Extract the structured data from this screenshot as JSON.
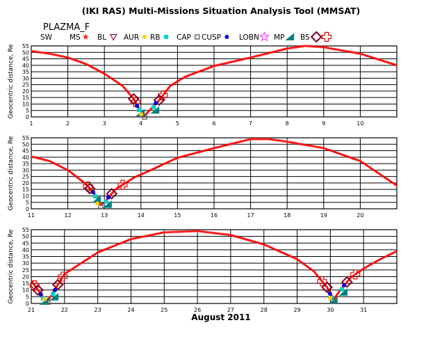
{
  "chart_data": {
    "type": "line",
    "title": "(IKI RAS) Multi-Missions Situation Analysis Tool (MMSAT)",
    "satellite": "PLAZMA_F",
    "xlabel": "August 2011",
    "ylabel": "Geocentric distance, Re",
    "ylim": [
      0,
      55
    ],
    "yticks": [
      "0",
      "5",
      "10",
      "15",
      "20",
      "25",
      "30",
      "35",
      "40",
      "45",
      "50",
      "55"
    ],
    "grid": true,
    "legend_position": "top",
    "legend": [
      {
        "label": "SW",
        "symbol": "none",
        "color": "#ff0000"
      },
      {
        "label": "MS",
        "symbol": "star",
        "color": "#ff2020"
      },
      {
        "label": "BL",
        "symbol": "triangle-down-open",
        "color": "#a01030"
      },
      {
        "label": "AUR",
        "symbol": "dot",
        "color": "#ffd000"
      },
      {
        "label": "RB",
        "symbol": "square",
        "color": "#00d0d0"
      },
      {
        "label": "CAP",
        "symbol": "square-open",
        "color": "#606060"
      },
      {
        "label": "CUSP",
        "symbol": "dot",
        "color": "#0000e0"
      },
      {
        "label": "LOBN",
        "symbol": "star-open",
        "color": "#ff40ff"
      },
      {
        "label": "MP",
        "symbol": "triangle",
        "color": "#008080"
      },
      {
        "label": "BS",
        "symbol": "diamond-open",
        "color": "#800020"
      },
      {
        "label": "",
        "symbol": "cross-open",
        "color": "#e00000"
      }
    ],
    "panels": [
      {
        "xlim": [
          1,
          11
        ],
        "xticks": [
          "1",
          "2",
          "3",
          "4",
          "5",
          "6",
          "7",
          "8",
          "9",
          "10"
        ],
        "orbit_points": [
          [
            1,
            51
          ],
          [
            1.5,
            49
          ],
          [
            2,
            46
          ],
          [
            2.5,
            41
          ],
          [
            3,
            33.5
          ],
          [
            3.5,
            24
          ],
          [
            3.8,
            14
          ],
          [
            4.0,
            4
          ],
          [
            4.1,
            1
          ],
          [
            4.2,
            4
          ],
          [
            4.5,
            13
          ],
          [
            4.8,
            24
          ],
          [
            5.2,
            31
          ],
          [
            6,
            39.5
          ],
          [
            7,
            46
          ],
          [
            8,
            53
          ],
          [
            8.5,
            55
          ],
          [
            9,
            54
          ],
          [
            10,
            49
          ],
          [
            11,
            40
          ]
        ],
        "bs_crossings": [
          3.8,
          4.5
        ],
        "mp_crossings": [
          3.95,
          4.35
        ],
        "bs_cross_markers": [
          3.85,
          4.6
        ]
      },
      {
        "xlim": [
          11,
          21
        ],
        "xticks": [
          "11",
          "12",
          "13",
          "14",
          "15",
          "16",
          "17",
          "18",
          "19",
          "20"
        ],
        "orbit_points": [
          [
            11,
            40.5
          ],
          [
            11.5,
            37
          ],
          [
            12,
            30
          ],
          [
            12.5,
            19
          ],
          [
            12.8,
            9
          ],
          [
            12.9,
            3
          ],
          [
            13.0,
            5
          ],
          [
            13.3,
            15
          ],
          [
            13.8,
            24
          ],
          [
            14.5,
            33
          ],
          [
            15,
            39.5
          ],
          [
            16,
            47
          ],
          [
            17,
            54
          ],
          [
            17.5,
            54
          ],
          [
            18,
            52
          ],
          [
            19,
            47
          ],
          [
            20,
            37
          ],
          [
            21,
            18
          ]
        ],
        "bs_crossings": [
          12.6,
          13.2
        ],
        "mp_crossings": [
          12.75,
          13.05
        ],
        "bs_cross_markers": [
          12.55,
          13.5
        ]
      },
      {
        "xlim": [
          21,
          32
        ],
        "xticks": [
          "21",
          "22",
          "23",
          "24",
          "25",
          "26",
          "27",
          "28",
          "29",
          "30",
          "31"
        ],
        "orbit_points": [
          [
            21,
            17
          ],
          [
            21.2,
            10
          ],
          [
            21.4,
            3
          ],
          [
            21.5,
            2
          ],
          [
            21.7,
            10
          ],
          [
            22,
            22
          ],
          [
            22.5,
            30
          ],
          [
            23,
            38
          ],
          [
            24,
            48
          ],
          [
            25,
            53
          ],
          [
            26,
            54
          ],
          [
            27,
            51
          ],
          [
            28,
            44
          ],
          [
            29,
            33
          ],
          [
            29.5,
            24
          ],
          [
            29.9,
            12
          ],
          [
            30.1,
            3
          ],
          [
            30.3,
            10
          ],
          [
            30.6,
            19
          ],
          [
            31,
            26
          ],
          [
            31.5,
            33
          ],
          [
            32,
            39
          ]
        ],
        "bs_crossings": [
          21.2,
          21.8,
          29.9,
          30.5
        ],
        "mp_crossings": [
          21.35,
          21.65,
          30.05,
          30.35
        ],
        "bs_cross_markers": [
          21.1,
          21.95,
          29.75,
          30.75
        ]
      }
    ]
  }
}
